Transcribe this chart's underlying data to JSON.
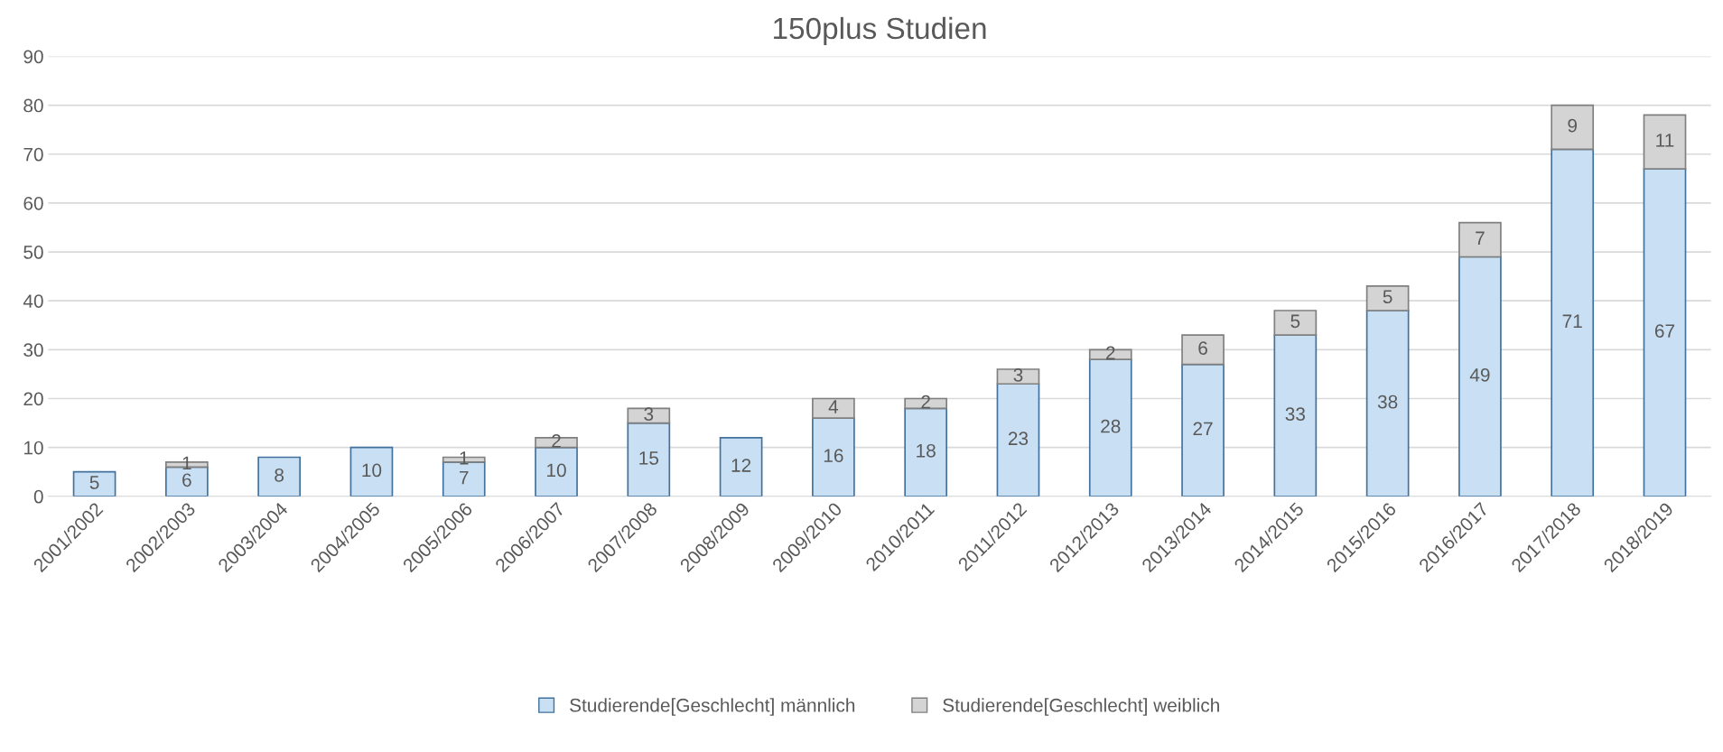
{
  "chart_data": {
    "type": "bar",
    "title": "150plus Studien",
    "stacked": true,
    "categories": [
      "2001/2002",
      "2002/2003",
      "2003/2004",
      "2004/2005",
      "2005/2006",
      "2006/2007",
      "2007/2008",
      "2008/2009",
      "2009/2010",
      "2010/2011",
      "2011/2012",
      "2012/2013",
      "2013/2014",
      "2014/2015",
      "2015/2016",
      "2016/2017",
      "2017/2018",
      "2018/2019"
    ],
    "series": [
      {
        "name": "Studierende[Geschlecht] männlich",
        "color": "#c9dff3",
        "values": [
          5,
          6,
          8,
          10,
          7,
          10,
          15,
          12,
          16,
          18,
          23,
          28,
          27,
          33,
          38,
          49,
          71,
          67
        ]
      },
      {
        "name": "Studierende[Geschlecht] weiblich",
        "color": "#d4d4d4",
        "values": [
          null,
          1,
          null,
          null,
          1,
          2,
          3,
          null,
          4,
          2,
          3,
          2,
          6,
          5,
          5,
          7,
          9,
          11
        ]
      }
    ],
    "ylim": [
      0,
      90
    ],
    "yticks": [
      0,
      10,
      20,
      30,
      40,
      50,
      60,
      70,
      80,
      90
    ],
    "grid": "y",
    "legend": "bottom",
    "data_labels": true
  }
}
